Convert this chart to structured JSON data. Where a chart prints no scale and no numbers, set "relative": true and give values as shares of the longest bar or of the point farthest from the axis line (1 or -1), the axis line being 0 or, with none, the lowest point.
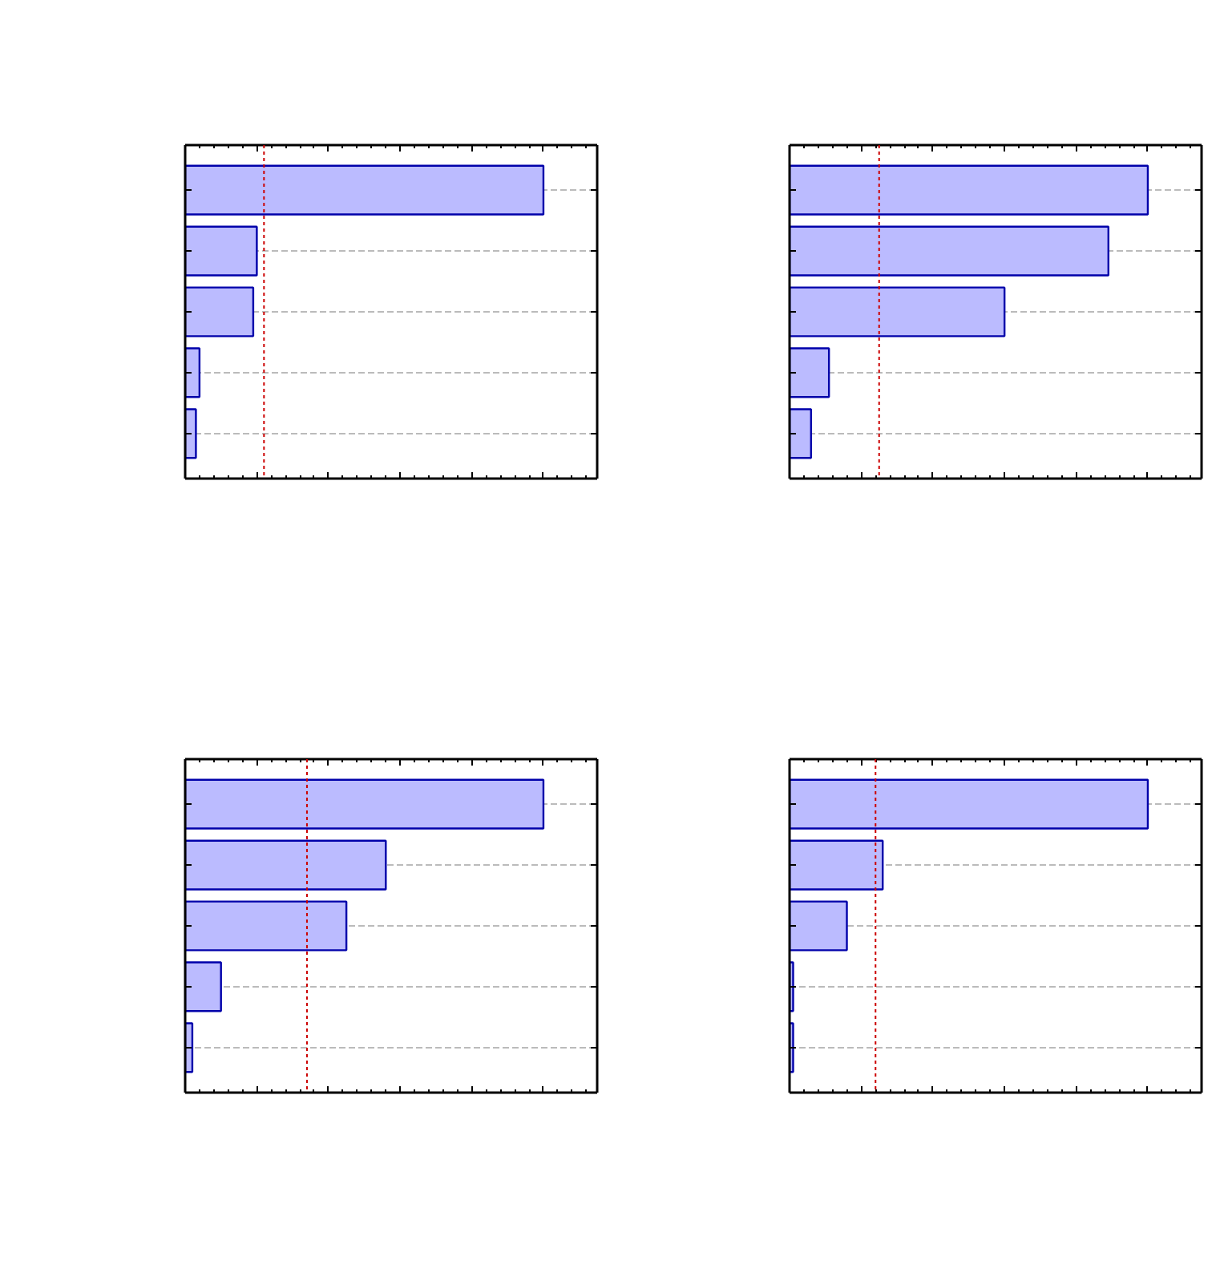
{
  "chart_data": [
    {
      "type": "bar",
      "orientation": "horizontal",
      "relative": true,
      "categories": [
        null,
        null,
        null,
        null,
        null
      ],
      "values": [
        1,
        0.2,
        0.19,
        0.04,
        0.03
      ],
      "color": "#bbbbff",
      "grid": "y",
      "ref_lines": [
        {
          "axis": "x",
          "value": 0.22,
          "color": "#cc0000",
          "line_style": "dotted"
        }
      ]
    },
    {
      "type": "bar",
      "orientation": "horizontal",
      "relative": true,
      "categories": [
        null,
        null,
        null,
        null,
        null
      ],
      "values": [
        1,
        0.89,
        0.6,
        0.11,
        0.06
      ],
      "color": "#bbbbff",
      "grid": "y",
      "ref_lines": [
        {
          "axis": "x",
          "value": 0.25,
          "color": "#cc0000",
          "line_style": "dotted"
        }
      ]
    },
    {
      "type": "bar",
      "orientation": "horizontal",
      "relative": true,
      "categories": [
        null,
        null,
        null,
        null,
        null
      ],
      "values": [
        1,
        0.56,
        0.45,
        0.1,
        0.02
      ],
      "color": "#bbbbff",
      "grid": "y",
      "ref_lines": [
        {
          "axis": "x",
          "value": 0.34,
          "color": "#cc0000",
          "line_style": "dotted"
        }
      ]
    },
    {
      "type": "bar",
      "orientation": "horizontal",
      "relative": true,
      "categories": [
        null,
        null,
        null,
        null,
        null
      ],
      "values": [
        1,
        0.26,
        0.16,
        0.01,
        0.01
      ],
      "color": "#bbbbff",
      "grid": "y",
      "ref_lines": [
        {
          "axis": "x",
          "value": 0.24,
          "color": "#cc0000",
          "line_style": "dotted"
        }
      ]
    }
  ]
}
